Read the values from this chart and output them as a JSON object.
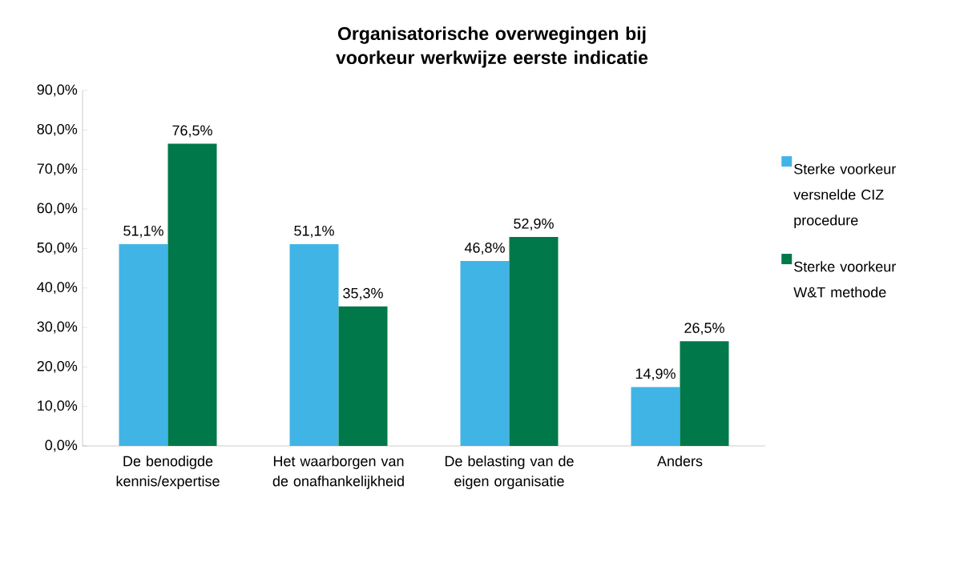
{
  "chart_data": {
    "type": "bar",
    "title": "Organisatorische overwegingen bij voorkeur werkwijze eerste indicatie",
    "categories": [
      "De benodigde kennis/expertise",
      "Het waarborgen van de onafhankelijkheid",
      "De belasting van de eigen organisatie",
      "Anders"
    ],
    "series": [
      {
        "name": "Sterke voorkeur versnelde CIZ procedure",
        "color": "#41b4e6",
        "values": [
          51.1,
          51.1,
          46.8,
          14.9
        ],
        "value_labels": [
          "51,1%",
          "51,1%",
          "46,8%",
          "14,9%"
        ]
      },
      {
        "name": "Sterke voorkeur W&T methode",
        "color": "#00784a",
        "values": [
          76.5,
          35.3,
          52.9,
          26.5
        ],
        "value_labels": [
          "76,5%",
          "35,3%",
          "52,9%",
          "26,5%"
        ]
      }
    ],
    "ylim": [
      0,
      90
    ],
    "yticks": [
      {
        "value": 0,
        "label": "0,0%"
      },
      {
        "value": 10,
        "label": "10,0%"
      },
      {
        "value": 20,
        "label": "20,0%"
      },
      {
        "value": 30,
        "label": "30,0%"
      },
      {
        "value": 40,
        "label": "40,0%"
      },
      {
        "value": 50,
        "label": "50,0%"
      },
      {
        "value": 60,
        "label": "60,0%"
      },
      {
        "value": 70,
        "label": "70,0%"
      },
      {
        "value": 80,
        "label": "80,0%"
      },
      {
        "value": 90,
        "label": "90,0%"
      }
    ],
    "grid": false,
    "legend": "right"
  }
}
